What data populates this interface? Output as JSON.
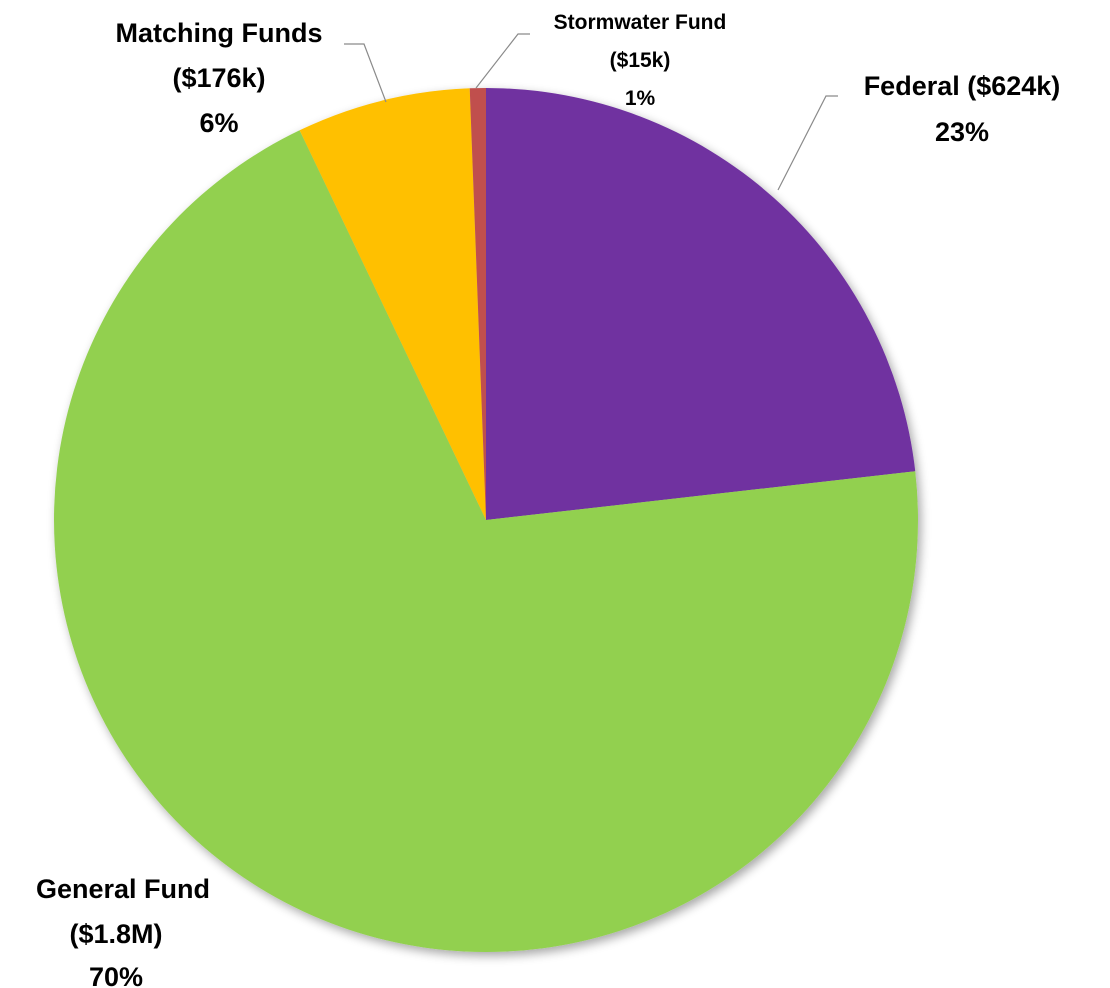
{
  "chart_data": {
    "type": "pie",
    "title": "",
    "start_angle_deg": 0,
    "direction": "clockwise",
    "slices": [
      {
        "label": "Federal ($624k)",
        "amount_label": "",
        "percent_label": "23%",
        "value": 23.2,
        "color": "#7030A0"
      },
      {
        "label": "General Fund",
        "amount_label": "($1.8M)",
        "percent_label": "70%",
        "value": 69.7,
        "color": "#92D050"
      },
      {
        "label": "Matching Funds",
        "amount_label": "($176k)",
        "percent_label": "6%",
        "value": 6.5,
        "color": "#FFC000"
      },
      {
        "label": "Stormwater Fund",
        "amount_label": "($15k)",
        "percent_label": "1%",
        "value": 0.6,
        "color": "#C0504D"
      }
    ]
  }
}
